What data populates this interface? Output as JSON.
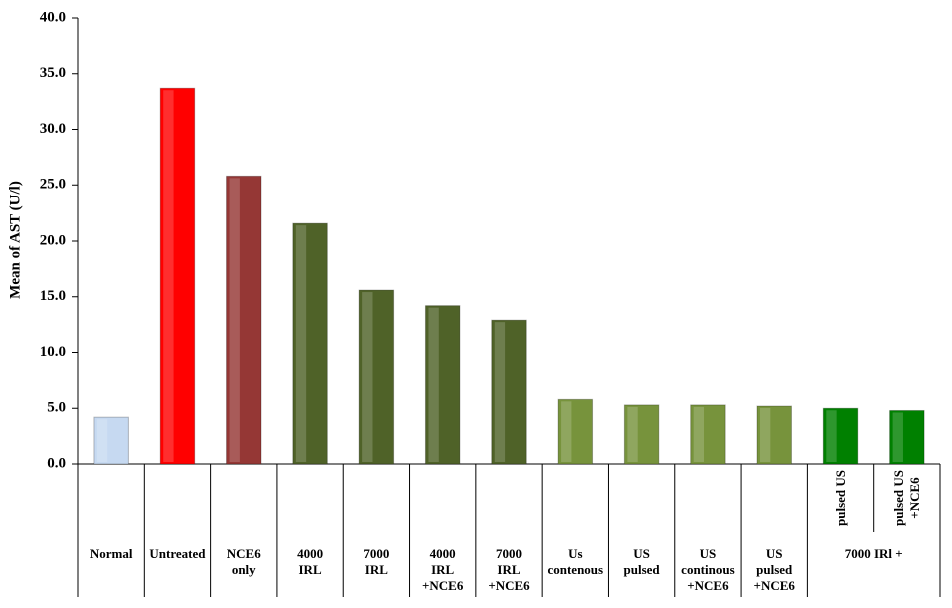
{
  "chart_data": {
    "type": "bar",
    "y_label": "Mean of AST (U/l)",
    "categories": [
      "Normal",
      "Untreated",
      "NCE6\nonly",
      "4000\nIRL",
      "7000\nIRL",
      "4000\nIRL\n+NCE6",
      "7000\nIRL\n+NCE6",
      "Us\ncontenous",
      "US\npulsed",
      "US\ncontinous\n+NCE6",
      "US\npulsed\n+NCE6",
      "pulsed US",
      "pulsed US\n+NCE6"
    ],
    "category_group": "7000 IRl +",
    "values": [
      4.2,
      33.7,
      25.8,
      21.6,
      15.6,
      14.2,
      12.9,
      5.8,
      5.3,
      5.3,
      5.2,
      5.0,
      4.8
    ],
    "colors": [
      "#c6d9f1",
      "#ff0000",
      "#953735",
      "#4f6228",
      "#4f6228",
      "#4f6228",
      "#4f6228",
      "#77933c",
      "#77933c",
      "#77933c",
      "#77933c",
      "#008000",
      "#008000"
    ],
    "ylim": [
      0,
      40
    ],
    "yticks": [
      {
        "value": 0,
        "label": "0.0"
      },
      {
        "value": 5,
        "label": "5.0"
      },
      {
        "value": 10,
        "label": "10.0"
      },
      {
        "value": 15,
        "label": "15.0"
      },
      {
        "value": 20,
        "label": "20.0"
      },
      {
        "value": 25,
        "label": "25.0"
      },
      {
        "value": 30,
        "label": "30.0"
      },
      {
        "value": 35,
        "label": "35.0"
      },
      {
        "value": 40,
        "label": "40.0"
      }
    ]
  }
}
